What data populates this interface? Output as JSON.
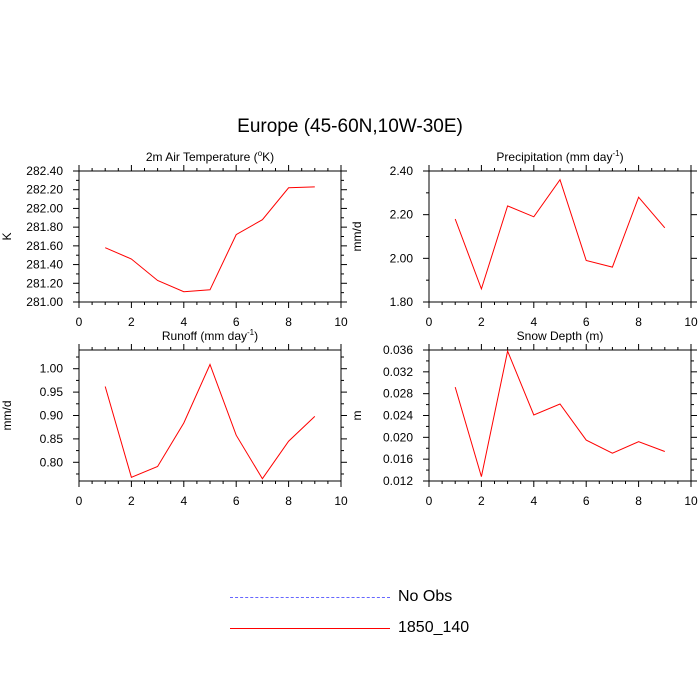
{
  "page_title": "Europe (45-60N,10W-30E)",
  "chart_data": [
    {
      "type": "line",
      "title": "2m Air Temperature (",
      "title_sup": "o",
      "title_tail": "K)",
      "ylabel": "K",
      "xlabel": "",
      "xlim": [
        0,
        10
      ],
      "ylim": [
        281.0,
        282.4
      ],
      "xticks": [
        0,
        2,
        4,
        6,
        8,
        10
      ],
      "yticks": [
        281.0,
        281.2,
        281.4,
        281.6,
        281.8,
        282.0,
        282.2,
        282.4
      ],
      "ytick_labels": [
        "281.00",
        "281.20",
        "281.40",
        "281.60",
        "281.80",
        "282.00",
        "282.20",
        "282.40"
      ],
      "x": [
        1,
        2,
        3,
        4,
        5,
        6,
        7,
        8,
        9
      ],
      "series": [
        {
          "name": "1850_140",
          "color": "#ff0000",
          "values": [
            281.58,
            281.46,
            281.23,
            281.11,
            281.13,
            281.72,
            281.88,
            282.22,
            282.23
          ]
        }
      ]
    },
    {
      "type": "line",
      "title": "Precipitation (mm day",
      "title_sup": "-1",
      "title_tail": ")",
      "ylabel": "mm/d",
      "xlabel": "",
      "xlim": [
        0,
        10
      ],
      "ylim": [
        1.8,
        2.4
      ],
      "xticks": [
        0,
        2,
        4,
        6,
        8,
        10
      ],
      "yticks": [
        1.8,
        2.0,
        2.2,
        2.4
      ],
      "ytick_labels": [
        "1.80",
        "2.00",
        "2.20",
        "2.40"
      ],
      "x": [
        1,
        2,
        3,
        4,
        5,
        6,
        7,
        8,
        9
      ],
      "series": [
        {
          "name": "1850_140",
          "color": "#ff0000",
          "values": [
            2.18,
            1.86,
            2.24,
            2.19,
            2.36,
            1.99,
            1.96,
            2.28,
            2.14
          ]
        }
      ]
    },
    {
      "type": "line",
      "title": "Runoff (mm day",
      "title_sup": "-1",
      "title_tail": ")",
      "ylabel": "mm/d",
      "xlabel": "",
      "xlim": [
        0,
        10
      ],
      "ylim": [
        0.76,
        1.04
      ],
      "xticks": [
        0,
        2,
        4,
        6,
        8,
        10
      ],
      "yticks": [
        0.8,
        0.85,
        0.9,
        0.95,
        1.0
      ],
      "ytick_labels": [
        "0.80",
        "0.85",
        "0.90",
        "0.95",
        "1.00"
      ],
      "x": [
        1,
        2,
        3,
        4,
        5,
        6,
        7,
        8,
        9
      ],
      "series": [
        {
          "name": "1850_140",
          "color": "#ff0000",
          "values": [
            0.962,
            0.768,
            0.791,
            0.884,
            1.009,
            0.858,
            0.765,
            0.845,
            0.898
          ]
        }
      ]
    },
    {
      "type": "line",
      "title": "Snow Depth (m)",
      "title_sup": "",
      "title_tail": "",
      "ylabel": "m",
      "xlabel": "",
      "xlim": [
        0,
        10
      ],
      "ylim": [
        0.012,
        0.036
      ],
      "xticks": [
        0,
        2,
        4,
        6,
        8,
        10
      ],
      "yticks": [
        0.012,
        0.016,
        0.02,
        0.024,
        0.028,
        0.032,
        0.036
      ],
      "ytick_labels": [
        "0.012",
        "0.016",
        "0.020",
        "0.024",
        "0.028",
        "0.032",
        "0.036"
      ],
      "x": [
        1,
        2,
        3,
        4,
        5,
        6,
        7,
        8,
        9
      ],
      "series": [
        {
          "name": "1850_140",
          "color": "#ff0000",
          "values": [
            0.0292,
            0.0128,
            0.0358,
            0.0241,
            0.0261,
            0.0195,
            0.0171,
            0.0192,
            0.0174
          ]
        }
      ]
    }
  ],
  "legend": [
    {
      "label": "No Obs",
      "color": "#6666ff",
      "style": "dashed"
    },
    {
      "label": "1850_140",
      "color": "#ff0000",
      "style": "solid"
    }
  ]
}
